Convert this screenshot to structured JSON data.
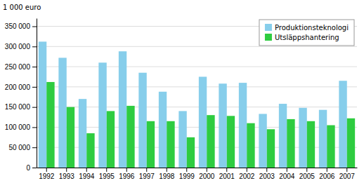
{
  "chart_data": {
    "type": "bar",
    "ylabel": "1 000 euro",
    "categories": [
      "1992",
      "1993",
      "1994",
      "1995",
      "1996",
      "1997",
      "1998",
      "1999",
      "2000",
      "2001",
      "2002",
      "2003",
      "2004",
      "2005",
      "2006",
      "2007"
    ],
    "series": [
      {
        "name": "Produktionsteknologi",
        "color": "#87CEEB",
        "values": [
          312000,
          272000,
          170000,
          260000,
          288000,
          235000,
          188000,
          140000,
          225000,
          208000,
          210000,
          133000,
          158000,
          148000,
          143000,
          215000
        ]
      },
      {
        "name": "Utsläppshantering",
        "color": "#2ECC40",
        "values": [
          212000,
          150000,
          85000,
          140000,
          153000,
          115000,
          115000,
          75000,
          130000,
          128000,
          110000,
          95000,
          120000,
          115000,
          105000,
          122000
        ]
      }
    ],
    "ylim": [
      0,
      370000
    ],
    "yticks": [
      0,
      {
        "value": 50000,
        "label": "50 000"
      },
      {
        "value": 100000,
        "label": "100 000"
      },
      {
        "value": 150000,
        "label": "150 000"
      },
      {
        "value": 200000,
        "label": "200 000"
      },
      {
        "value": 250000,
        "label": "250 000"
      },
      {
        "value": 300000,
        "label": "300 000"
      },
      {
        "value": 350000,
        "label": "350 000"
      }
    ],
    "grid": true,
    "legend": "upper right"
  }
}
